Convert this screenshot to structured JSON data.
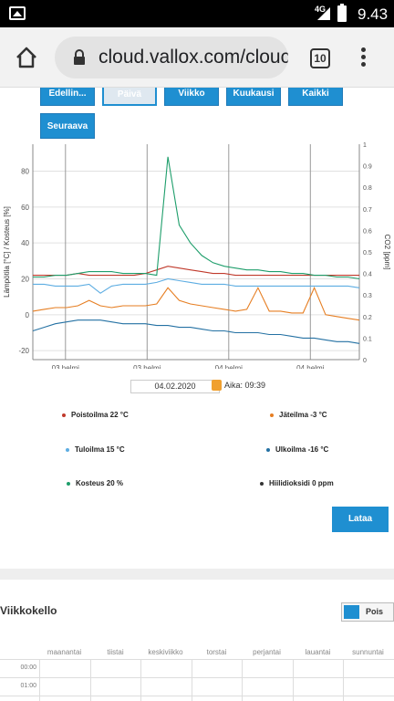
{
  "status": {
    "network": "4G",
    "time": "9.43"
  },
  "browser": {
    "url": "cloud.vallox.com/clouc",
    "tab_count": "10"
  },
  "period_buttons": [
    {
      "label": "Edellin..."
    },
    {
      "label": "Päivä"
    },
    {
      "label": "Viikko"
    },
    {
      "label": "Kuukausi"
    },
    {
      "label": "Kaikki"
    },
    {
      "label": "Seuraava"
    }
  ],
  "chart_data": {
    "type": "line",
    "ylabel": "Lämpötila [°C] / Kosteus [%]",
    "y2label": "CO2 [ppm]",
    "y_ticks": [
      "80",
      "60",
      "40",
      "20",
      "0",
      "-20"
    ],
    "y2_ticks": [
      "1",
      "0.9",
      "0.8",
      "0.7",
      "0.6",
      "0.5",
      "0.4",
      "0.3",
      "0.2",
      "0.1",
      "0"
    ],
    "x_ticks": [
      "03 helmi",
      "03 helmi",
      "04 helmi",
      "04 helmi"
    ],
    "ylim": [
      -25,
      95
    ],
    "y2lim": [
      0,
      1.0
    ],
    "series": [
      {
        "name": "Poistoilma",
        "color": "#c0392b",
        "values": [
          22,
          22,
          22,
          22,
          23,
          22,
          22,
          22,
          22,
          22,
          23,
          25,
          27,
          26,
          25,
          24,
          23,
          23,
          22,
          22,
          22,
          22,
          22,
          22,
          22,
          22,
          22,
          22,
          22,
          22
        ]
      },
      {
        "name": "Jäteilma",
        "color": "#e67e22",
        "values": [
          2,
          3,
          4,
          4,
          5,
          8,
          5,
          4,
          5,
          5,
          5,
          6,
          15,
          8,
          6,
          5,
          4,
          3,
          2,
          3,
          15,
          2,
          2,
          1,
          1,
          15,
          0,
          -1,
          -2,
          -3
        ]
      },
      {
        "name": "Tuloilma",
        "color": "#5dade2",
        "values": [
          17,
          17,
          16,
          16,
          16,
          17,
          12,
          16,
          17,
          17,
          17,
          18,
          20,
          19,
          18,
          17,
          17,
          17,
          16,
          16,
          16,
          16,
          16,
          16,
          16,
          16,
          16,
          16,
          16,
          15
        ]
      },
      {
        "name": "Ulkoilma",
        "color": "#2471a3",
        "values": [
          -9,
          -7,
          -5,
          -4,
          -3,
          -3,
          -3,
          -4,
          -5,
          -5,
          -5,
          -6,
          -6,
          -7,
          -7,
          -8,
          -9,
          -9,
          -10,
          -10,
          -10,
          -11,
          -11,
          -12,
          -13,
          -13,
          -14,
          -15,
          -15,
          -16
        ]
      },
      {
        "name": "Kosteus",
        "color": "#1e9e6b",
        "values": [
          21,
          21,
          22,
          22,
          23,
          24,
          24,
          24,
          23,
          23,
          23,
          22,
          88,
          50,
          40,
          33,
          29,
          27,
          26,
          25,
          25,
          24,
          24,
          23,
          23,
          22,
          22,
          21,
          21,
          20
        ]
      },
      {
        "name": "Hiilidioksidi",
        "color": "#333333",
        "values": [
          0,
          0,
          0,
          0,
          0,
          0,
          0,
          0,
          0,
          0,
          0,
          0,
          0,
          0,
          0,
          0,
          0,
          0,
          0,
          0,
          0,
          0,
          0,
          0,
          0,
          0,
          0,
          0,
          0,
          0
        ]
      }
    ]
  },
  "date_picker": {
    "value": "04.02.2020",
    "time": "Aika: 09:39"
  },
  "legend": [
    {
      "label": "Poistoilma  22 °C",
      "color": "#c0392b"
    },
    {
      "label": "Jäteilma  -3 °C",
      "color": "#e67e22"
    },
    {
      "label": "Tuloilma  15 °C",
      "color": "#5dade2"
    },
    {
      "label": "Ulkoilma  -16 °C",
      "color": "#2471a3"
    },
    {
      "label": "Kosteus  20 %",
      "color": "#1e9e6b"
    },
    {
      "label": "Hiilidioksidi  0 ppm",
      "color": "#333333"
    }
  ],
  "download_label": "Lataa",
  "weekly_clock": {
    "title": "Viikkokello",
    "toggle_label": "Pois",
    "days": [
      "maanantai",
      "tiistai",
      "keskiviikko",
      "torstai",
      "perjantai",
      "lauantai",
      "sunnuntai"
    ],
    "hours": [
      "00:00",
      "01:00"
    ]
  }
}
